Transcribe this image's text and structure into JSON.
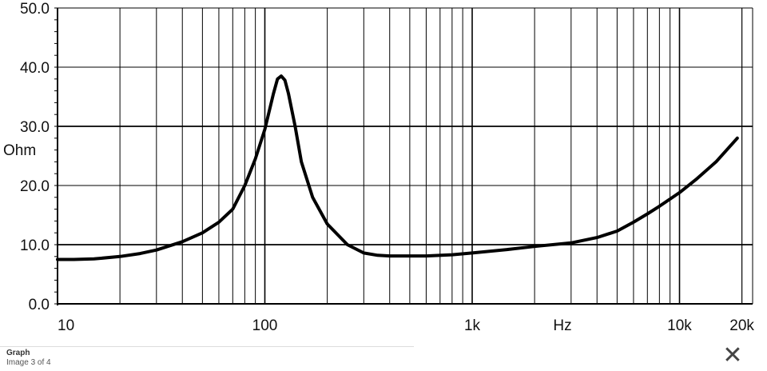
{
  "chart_data": {
    "type": "line",
    "x_scale": "log",
    "xlim": [
      10,
      20000
    ],
    "ylim": [
      0,
      50
    ],
    "y_ticks": [
      "0.0",
      "10.0",
      "20.0",
      "30.0",
      "40.0",
      "50.0"
    ],
    "y_tick_values": [
      0,
      10,
      20,
      30,
      40,
      50
    ],
    "x_ticks": [
      "10",
      "100",
      "1k",
      "10k",
      "20k"
    ],
    "x_tick_values": [
      10,
      100,
      1000,
      10000,
      20000
    ],
    "ylabel": "Ohm",
    "xlabel": "Hz",
    "grid": true,
    "series": [
      {
        "x": [
          10,
          12,
          15,
          20,
          25,
          30,
          40,
          50,
          60,
          70,
          80,
          90,
          100,
          110,
          115,
          120,
          125,
          130,
          140,
          150,
          170,
          200,
          250,
          300,
          350,
          400,
          500,
          600,
          800,
          1000,
          1500,
          2000,
          3000,
          4000,
          5000,
          6000,
          7000,
          8000,
          10000,
          12000,
          15000,
          19000
        ],
        "y": [
          7.5,
          7.5,
          7.6,
          8.0,
          8.5,
          9.1,
          10.5,
          12.0,
          13.8,
          16.0,
          20.0,
          24.5,
          29.5,
          35.5,
          38.0,
          38.5,
          37.8,
          35.5,
          30.0,
          24.0,
          18.0,
          13.5,
          10.0,
          8.6,
          8.2,
          8.1,
          8.1,
          8.1,
          8.3,
          8.6,
          9.2,
          9.7,
          10.3,
          11.2,
          12.3,
          13.8,
          15.2,
          16.5,
          18.8,
          21.0,
          24.0,
          28.0
        ]
      }
    ]
  },
  "caption": {
    "title": "Graph",
    "subtitle": "Image 3 of 4"
  },
  "close_icon": "✕"
}
